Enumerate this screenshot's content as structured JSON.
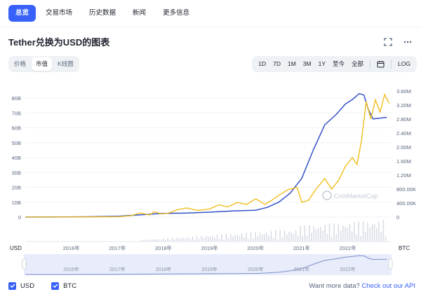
{
  "tabs": [
    {
      "label": "总览",
      "active": true
    },
    {
      "label": "交易市场",
      "active": false
    },
    {
      "label": "历史数据",
      "active": false
    },
    {
      "label": "新闻",
      "active": false
    },
    {
      "label": "更多信息",
      "active": false
    }
  ],
  "title": "Tether兑换为USD的图表",
  "icons": {
    "expand": "fullscreen-icon",
    "more": "more-icon",
    "calendar": "calendar-icon"
  },
  "view_toggle": {
    "options": [
      "价格",
      "市值",
      "K线图"
    ],
    "selected": "市值"
  },
  "ranges": [
    "1D",
    "7D",
    "1M",
    "3M",
    "1Y",
    "至今",
    "全部"
  ],
  "log_label": "LOG",
  "watermark": "CoinMarketCap",
  "colors": {
    "accent": "#3861fb",
    "usd_line": "#3452c8",
    "btc_line": "#f0b90b",
    "navigator": "#e8ecfb"
  },
  "legend": {
    "usd": "USD",
    "btc": "BTC"
  },
  "footer": {
    "prefix": "Want more data?",
    "link": "Check out our API"
  },
  "chart_data": {
    "type": "line",
    "x_ticks": [
      "2016年",
      "2017年",
      "2018年",
      "2019年",
      "2020年",
      "2021年",
      "2022年"
    ],
    "x_tick_pos": [
      2016,
      2017,
      2018,
      2019,
      2020,
      2021,
      2022
    ],
    "x_range": [
      2015.0,
      2022.95
    ],
    "left_axis": {
      "label": "USD",
      "ticks": [
        "0",
        "10B",
        "20B",
        "30B",
        "40B",
        "50B",
        "60B",
        "70B",
        "80B"
      ],
      "ylim": [
        0,
        80000000000
      ]
    },
    "right_axis": {
      "label": "BTC",
      "ticks": [
        "0",
        "400.00K",
        "800.00K",
        "1.20M",
        "1.60M",
        "2.00M",
        "2.40M",
        "2.80M",
        "3.20M",
        "3.60M"
      ],
      "ylim": [
        0,
        3600000
      ]
    },
    "series": [
      {
        "name": "USD",
        "axis": "left",
        "x": [
          2015.0,
          2016.0,
          2017.0,
          2017.5,
          2018.0,
          2018.5,
          2019.0,
          2019.5,
          2020.0,
          2020.25,
          2020.5,
          2020.75,
          2021.0,
          2021.25,
          2021.5,
          2021.75,
          2021.95,
          2022.1,
          2022.25,
          2022.35,
          2022.45,
          2022.55,
          2022.7,
          2022.85
        ],
        "y": [
          0,
          100000000,
          500000000,
          1500000000,
          2500000000,
          2700000000,
          3300000000,
          4100000000,
          4600000000,
          6500000000,
          10000000000,
          16000000000,
          26000000000,
          45000000000,
          62000000000,
          69000000000,
          76000000000,
          79000000000,
          83000000000,
          82000000000,
          72000000000,
          66000000000,
          66500000000,
          67000000000
        ]
      },
      {
        "name": "BTC",
        "axis": "right",
        "x": [
          2015.0,
          2016.0,
          2017.0,
          2017.3,
          2017.5,
          2017.7,
          2017.8,
          2017.95,
          2018.1,
          2018.3,
          2018.5,
          2018.75,
          2019.0,
          2019.2,
          2019.4,
          2019.6,
          2019.8,
          2020.0,
          2020.1,
          2020.2,
          2020.35,
          2020.5,
          2020.7,
          2020.9,
          2021.0,
          2021.15,
          2021.3,
          2021.5,
          2021.65,
          2021.8,
          2021.95,
          2022.1,
          2022.2,
          2022.3,
          2022.4,
          2022.5,
          2022.6,
          2022.7,
          2022.8,
          2022.9
        ],
        "y": [
          0,
          2000,
          10000,
          40000,
          120000,
          60000,
          150000,
          90000,
          110000,
          210000,
          260000,
          190000,
          230000,
          350000,
          290000,
          420000,
          360000,
          520000,
          450000,
          360000,
          480000,
          620000,
          780000,
          850000,
          420000,
          480000,
          780000,
          1100000,
          800000,
          1050000,
          1450000,
          1700000,
          1500000,
          2200000,
          3300000,
          2800000,
          3350000,
          3000000,
          3500000,
          3250000
        ]
      }
    ]
  }
}
